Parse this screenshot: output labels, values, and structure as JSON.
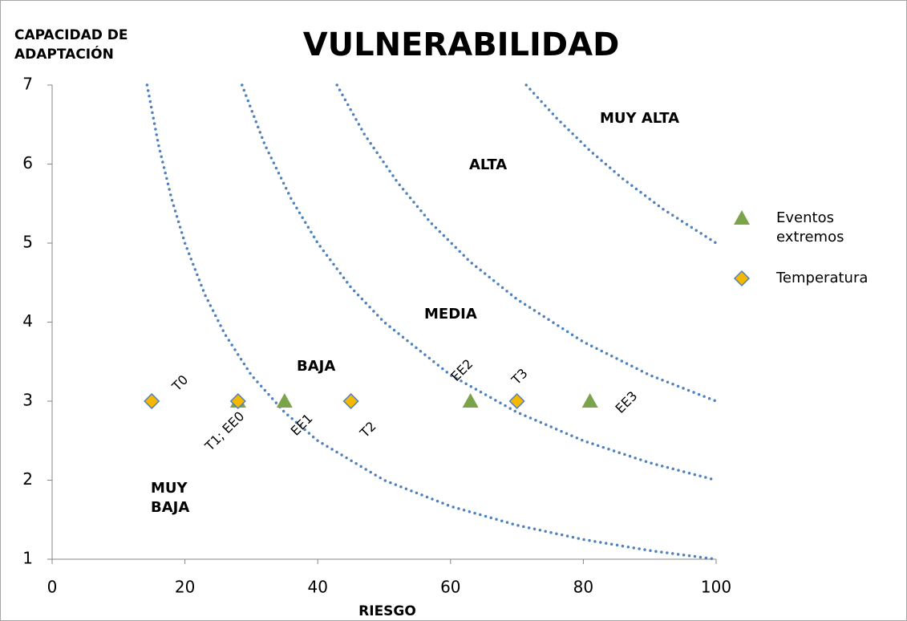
{
  "chart_data": {
    "type": "scatter",
    "title": "VULNERABILIDAD",
    "x_label": "RIESGO",
    "y_label": "CAPACIDAD DE ADAPTACIÓN",
    "xlim": [
      0,
      100
    ],
    "xticks": [
      0,
      20,
      40,
      60,
      80,
      100
    ],
    "ylim": [
      1,
      7
    ],
    "yticks": [
      1,
      2,
      3,
      4,
      5,
      6,
      7
    ],
    "curves": [
      {
        "color": "#4f81bd",
        "x": [
          14.3,
          16,
          18,
          20,
          23,
          26,
          30,
          35,
          40,
          50,
          60,
          70,
          80,
          90,
          100
        ],
        "values": [
          7,
          6.25,
          5.56,
          5,
          4.35,
          3.85,
          3.33,
          2.86,
          2.5,
          2,
          1.67,
          1.43,
          1.25,
          1.11,
          1
        ]
      },
      {
        "color": "#4f81bd",
        "x": [
          28.6,
          32,
          36,
          40,
          45,
          50,
          60,
          70,
          80,
          90,
          100
        ],
        "values": [
          7,
          6.25,
          5.56,
          5,
          4.44,
          4,
          3.33,
          2.86,
          2.5,
          2.22,
          2
        ]
      },
      {
        "color": "#4f81bd",
        "x": [
          42.9,
          47,
          52,
          57,
          63,
          70,
          80,
          90,
          100
        ],
        "values": [
          7,
          6.38,
          5.77,
          5.26,
          4.76,
          4.29,
          3.75,
          3.33,
          3
        ]
      },
      {
        "color": "#4f81bd",
        "x": [
          71.4,
          76,
          81,
          86,
          92,
          100
        ],
        "values": [
          7,
          6.58,
          6.17,
          5.81,
          5.43,
          5
        ]
      }
    ],
    "series": [
      {
        "name": "Eventos extremos",
        "color": "#7ba34a",
        "marker": "triangle",
        "x": [
          28,
          35,
          63,
          81
        ],
        "values": [
          3,
          3,
          3,
          3
        ],
        "point_labels": [
          null,
          "EE1",
          "EE2",
          "EE3"
        ]
      },
      {
        "name": "Temperatura",
        "color": "#f5b800",
        "marker": "diamond",
        "x": [
          15,
          28,
          45,
          70
        ],
        "values": [
          3,
          3,
          3,
          3
        ],
        "point_labels": [
          "T0",
          "T1; EE0",
          "T2",
          "T3"
        ]
      }
    ],
    "annotations": [
      "MUY ALTA",
      "ALTA",
      "MEDIA",
      "BAJA",
      "MUY BAJA"
    ]
  }
}
